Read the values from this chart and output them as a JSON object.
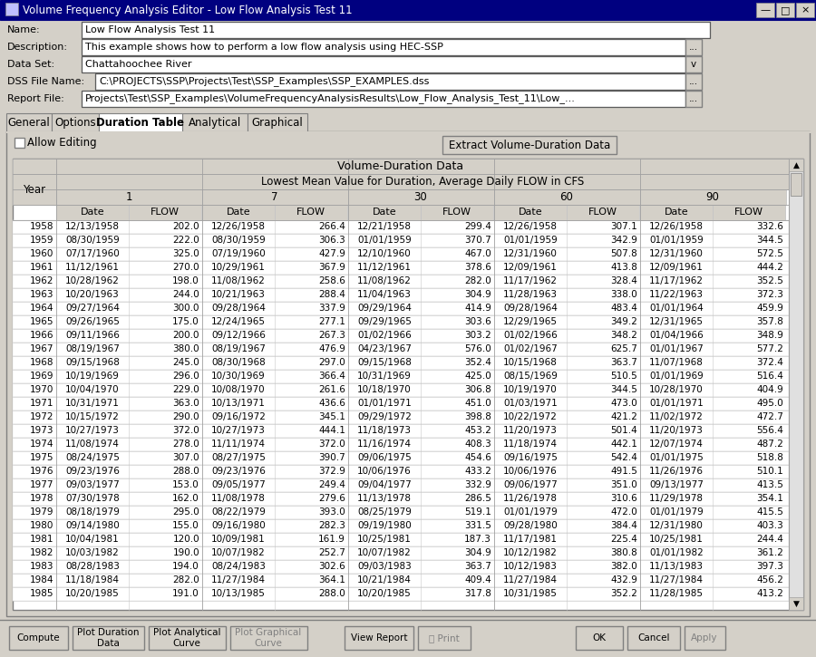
{
  "title_bar": "Volume Frequency Analysis Editor - Low Flow Analysis Test 11",
  "fields": {
    "Name": "Low Flow Analysis Test 11",
    "Description": "This example shows how to perform a low flow analysis using HEC-SSP",
    "Data Set": "Chattahoochee River",
    "DSS File Name": "C:\\PROJECTS\\SSP\\Projects\\Test\\SSP_Examples\\SSP_EXAMPLES.dss",
    "Report File": "Projects\\Test\\SSP_Examples\\VolumeFrequencyAnalysisResults\\Low_Flow_Analysis_Test_11\\Low_..."
  },
  "tabs": [
    "General",
    "Options",
    "Duration Table",
    "Analytical",
    "Graphical"
  ],
  "active_tab": "Duration Table",
  "table_header1": "Volume-Duration Data",
  "table_header2": "Lowest Mean Value for Duration, Average Daily FLOW in CFS",
  "durations": [
    "1",
    "7",
    "30",
    "60",
    "90"
  ],
  "row_header": "Year",
  "data": [
    [
      1958,
      "12/13/1958",
      202.0,
      "12/26/1958",
      266.4,
      "12/21/1958",
      299.4,
      "12/26/1958",
      307.1,
      "12/26/1958",
      332.6
    ],
    [
      1959,
      "08/30/1959",
      222.0,
      "08/30/1959",
      306.3,
      "01/01/1959",
      370.7,
      "01/01/1959",
      342.9,
      "01/01/1959",
      344.5
    ],
    [
      1960,
      "07/17/1960",
      325.0,
      "07/19/1960",
      427.9,
      "12/10/1960",
      467.0,
      "12/31/1960",
      507.8,
      "12/31/1960",
      572.5
    ],
    [
      1961,
      "11/12/1961",
      270.0,
      "10/29/1961",
      367.9,
      "11/12/1961",
      378.6,
      "12/09/1961",
      413.8,
      "12/09/1961",
      444.2
    ],
    [
      1962,
      "10/28/1962",
      198.0,
      "11/08/1962",
      258.6,
      "11/08/1962",
      282.0,
      "11/17/1962",
      328.4,
      "11/17/1962",
      352.5
    ],
    [
      1963,
      "10/20/1963",
      244.0,
      "10/21/1963",
      288.4,
      "11/04/1963",
      304.9,
      "11/28/1963",
      338.0,
      "11/22/1963",
      372.3
    ],
    [
      1964,
      "09/27/1964",
      300.0,
      "09/28/1964",
      337.9,
      "09/29/1964",
      414.9,
      "09/28/1964",
      483.4,
      "01/01/1964",
      459.9
    ],
    [
      1965,
      "09/26/1965",
      175.0,
      "12/24/1965",
      277.1,
      "09/29/1965",
      303.6,
      "12/29/1965",
      349.2,
      "12/31/1965",
      357.8
    ],
    [
      1966,
      "09/11/1966",
      200.0,
      "09/12/1966",
      267.3,
      "01/02/1966",
      303.2,
      "01/02/1966",
      348.2,
      "01/04/1966",
      348.9
    ],
    [
      1967,
      "08/19/1967",
      380.0,
      "08/19/1967",
      476.9,
      "04/23/1967",
      576.0,
      "01/02/1967",
      625.7,
      "01/01/1967",
      577.2
    ],
    [
      1968,
      "09/15/1968",
      245.0,
      "08/30/1968",
      297.0,
      "09/15/1968",
      352.4,
      "10/15/1968",
      363.7,
      "11/07/1968",
      372.4
    ],
    [
      1969,
      "10/19/1969",
      296.0,
      "10/30/1969",
      366.4,
      "10/31/1969",
      425.0,
      "08/15/1969",
      510.5,
      "01/01/1969",
      516.4
    ],
    [
      1970,
      "10/04/1970",
      229.0,
      "10/08/1970",
      261.6,
      "10/18/1970",
      306.8,
      "10/19/1970",
      344.5,
      "10/28/1970",
      404.9
    ],
    [
      1971,
      "10/31/1971",
      363.0,
      "10/13/1971",
      436.6,
      "01/01/1971",
      451.0,
      "01/03/1971",
      473.0,
      "01/01/1971",
      495.0
    ],
    [
      1972,
      "10/15/1972",
      290.0,
      "09/16/1972",
      345.1,
      "09/29/1972",
      398.8,
      "10/22/1972",
      421.2,
      "11/02/1972",
      472.7
    ],
    [
      1973,
      "10/27/1973",
      372.0,
      "10/27/1973",
      444.1,
      "11/18/1973",
      453.2,
      "11/20/1973",
      501.4,
      "11/20/1973",
      556.4
    ],
    [
      1974,
      "11/08/1974",
      278.0,
      "11/11/1974",
      372.0,
      "11/16/1974",
      408.3,
      "11/18/1974",
      442.1,
      "12/07/1974",
      487.2
    ],
    [
      1975,
      "08/24/1975",
      307.0,
      "08/27/1975",
      390.7,
      "09/06/1975",
      454.6,
      "09/16/1975",
      542.4,
      "01/01/1975",
      518.8
    ],
    [
      1976,
      "09/23/1976",
      288.0,
      "09/23/1976",
      372.9,
      "10/06/1976",
      433.2,
      "10/06/1976",
      491.5,
      "11/26/1976",
      510.1
    ],
    [
      1977,
      "09/03/1977",
      153.0,
      "09/05/1977",
      249.4,
      "09/04/1977",
      332.9,
      "09/06/1977",
      351.0,
      "09/13/1977",
      413.5
    ],
    [
      1978,
      "07/30/1978",
      162.0,
      "11/08/1978",
      279.6,
      "11/13/1978",
      286.5,
      "11/26/1978",
      310.6,
      "11/29/1978",
      354.1
    ],
    [
      1979,
      "08/18/1979",
      295.0,
      "08/22/1979",
      393.0,
      "08/25/1979",
      519.1,
      "01/01/1979",
      472.0,
      "01/01/1979",
      415.5
    ],
    [
      1980,
      "09/14/1980",
      155.0,
      "09/16/1980",
      282.3,
      "09/19/1980",
      331.5,
      "09/28/1980",
      384.4,
      "12/31/1980",
      403.3
    ],
    [
      1981,
      "10/04/1981",
      120.0,
      "10/09/1981",
      161.9,
      "10/25/1981",
      187.3,
      "11/17/1981",
      225.4,
      "10/25/1981",
      244.4
    ],
    [
      1982,
      "10/03/1982",
      190.0,
      "10/07/1982",
      252.7,
      "10/07/1982",
      304.9,
      "10/12/1982",
      380.8,
      "01/01/1982",
      361.2
    ],
    [
      1983,
      "08/28/1983",
      194.0,
      "08/24/1983",
      302.6,
      "09/03/1983",
      363.7,
      "10/12/1983",
      382.0,
      "11/13/1983",
      397.3
    ],
    [
      1984,
      "11/18/1984",
      282.0,
      "11/27/1984",
      364.1,
      "10/21/1984",
      409.4,
      "11/27/1984",
      432.9,
      "11/27/1984",
      456.2
    ],
    [
      1985,
      "10/20/1985",
      191.0,
      "10/13/1985",
      288.0,
      "10/20/1985",
      317.8,
      "10/31/1985",
      352.2,
      "11/28/1985",
      413.2
    ]
  ],
  "win_bg": "#d4d0c8",
  "title_bg": "#000080",
  "title_fg": "#ffffff",
  "white": "#ffffff",
  "light_gray": "#f0f0f0",
  "mid_gray": "#c0c0c0",
  "dark_gray": "#808080",
  "btn_face": "#d4d0c8",
  "table_header_bg": "#d4d0c8",
  "cell_bg": "#ffffff"
}
